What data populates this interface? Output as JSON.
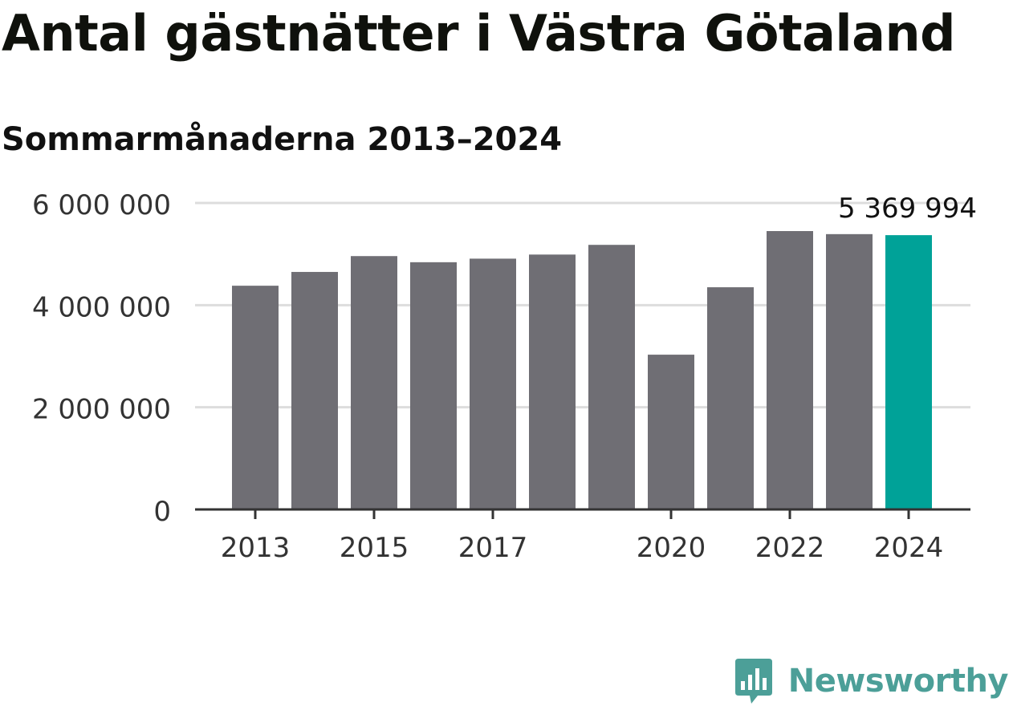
{
  "header": {
    "title": "Antal gästnätter i Västra Götaland",
    "subtitle": "Sommarmånaderna 2013–2024"
  },
  "chart_data": {
    "type": "bar",
    "categories": [
      "2013",
      "2014",
      "2015",
      "2016",
      "2017",
      "2018",
      "2019",
      "2020",
      "2021",
      "2022",
      "2023",
      "2024"
    ],
    "values": [
      4380000,
      4650000,
      4960000,
      4840000,
      4910000,
      4990000,
      5180000,
      3030000,
      4350000,
      5450000,
      5390000,
      5369994
    ],
    "x_tick_labels": [
      "2013",
      "2015",
      "2017",
      "2020",
      "2022",
      "2024"
    ],
    "y_ticks": [
      0,
      2000000,
      4000000,
      6000000
    ],
    "y_tick_labels": [
      "0",
      "2 000 000",
      "4 000 000",
      "6 000 000"
    ],
    "ylim": [
      0,
      6000000
    ],
    "highlight_index": 11,
    "highlight_label": "5 369 994",
    "grid": true,
    "colors": {
      "bar": "#6f6e74",
      "highlight": "#00a298",
      "grid": "#dddddd",
      "axis": "#333333"
    }
  },
  "branding": {
    "logo_icon": "newsworthy-logo-icon",
    "logo_text": "Newsworthy",
    "logo_color": "#4c9f98"
  }
}
